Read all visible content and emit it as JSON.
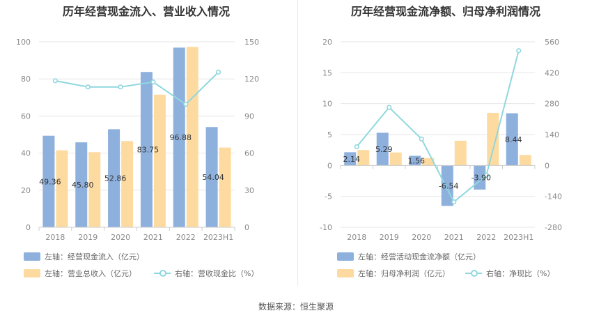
{
  "source": "数据来源：恒生聚源",
  "chart_data": [
    {
      "type": "bar",
      "title": "历年经营现金流入、营业收入情况",
      "categories": [
        "2018",
        "2019",
        "2020",
        "2021",
        "2022",
        "2023H1"
      ],
      "y_left": {
        "min": 0,
        "max": 100,
        "ticks": [
          0,
          20,
          40,
          60,
          80,
          100
        ]
      },
      "y_right": {
        "min": 0,
        "max": 150,
        "ticks": [
          0,
          30,
          60,
          90,
          120,
          150
        ]
      },
      "series": [
        {
          "name": "左轴：经营现金流入（亿元）",
          "axis": "left",
          "kind": "bar",
          "color": "#8eb0dd",
          "values": [
            49.36,
            45.8,
            52.86,
            83.75,
            96.88,
            54.04
          ],
          "labels": [
            "49.36",
            "45.80",
            "52.86",
            "83.75",
            "96.88",
            "54.04"
          ]
        },
        {
          "name": "左轴：营业总收入（亿元）",
          "axis": "left",
          "kind": "bar",
          "color": "#fddba0",
          "values": [
            41.5,
            40.5,
            46.5,
            71.5,
            97.3,
            43.0
          ]
        },
        {
          "name": "右轴：营收现金比（%）",
          "axis": "right",
          "kind": "line",
          "color": "#8fd7de",
          "values": [
            118.5,
            113.5,
            113.5,
            117.5,
            99.5,
            125.5
          ]
        }
      ]
    },
    {
      "type": "bar",
      "title": "历年经营现金流净额、归母净利润情况",
      "categories": [
        "2018",
        "2019",
        "2020",
        "2021",
        "2022",
        "2023H1"
      ],
      "y_left": {
        "min": -10,
        "max": 20,
        "ticks": [
          -10,
          -5,
          0,
          5,
          10,
          15,
          20
        ]
      },
      "y_right": {
        "min": -280,
        "max": 560,
        "ticks": [
          -280,
          -140,
          0,
          140,
          280,
          420,
          560
        ]
      },
      "series": [
        {
          "name": "左轴：经营活动现金流净额（亿元）",
          "axis": "left",
          "kind": "bar",
          "color": "#8eb0dd",
          "values": [
            2.14,
            5.29,
            1.56,
            -6.54,
            -3.9,
            8.44
          ],
          "labels": [
            "2.14",
            "5.29",
            "1.56",
            "-6.54",
            "-3.90",
            "8.44"
          ]
        },
        {
          "name": "左轴：归母净利润（亿元）",
          "axis": "left",
          "kind": "bar",
          "color": "#fddba0",
          "values": [
            2.5,
            2.1,
            1.2,
            4.0,
            8.5,
            1.7
          ]
        },
        {
          "name": "右轴：净现比（%）",
          "axis": "right",
          "kind": "line",
          "color": "#8fd7de",
          "values": [
            85,
            263,
            120,
            -165,
            -45,
            520
          ]
        }
      ]
    }
  ]
}
